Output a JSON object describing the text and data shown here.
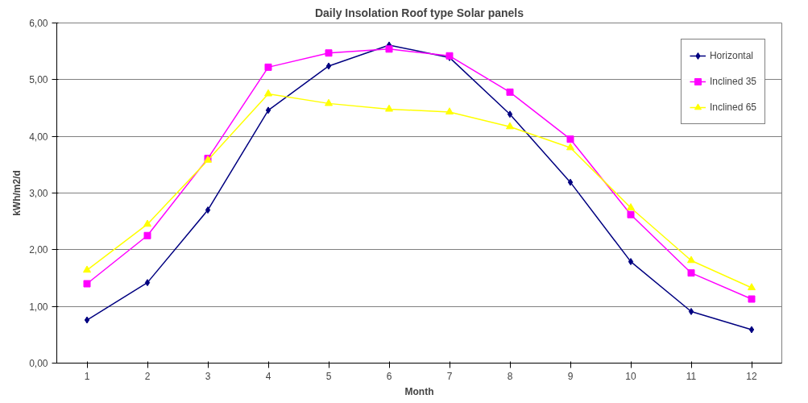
{
  "chart_data": {
    "type": "line",
    "title": "Daily Insolation Roof type Solar panels",
    "xlabel": "Month",
    "ylabel": "kWh/m2/d",
    "x": [
      1,
      2,
      3,
      4,
      5,
      6,
      7,
      8,
      9,
      10,
      11,
      12
    ],
    "xlim": [
      0.5,
      12.5
    ],
    "xticks": [
      1,
      2,
      3,
      4,
      5,
      6,
      7,
      8,
      9,
      10,
      11,
      12
    ],
    "ylim": [
      0,
      6
    ],
    "yticks": [
      {
        "value": 0,
        "label": "0,00"
      },
      {
        "value": 1,
        "label": "1,00"
      },
      {
        "value": 2,
        "label": "2,00"
      },
      {
        "value": 3,
        "label": "3,00"
      },
      {
        "value": 4,
        "label": "4,00"
      },
      {
        "value": 5,
        "label": "5,00"
      },
      {
        "value": 6,
        "label": "6,00"
      }
    ],
    "grid": "y",
    "legend": "top right",
    "line_style": "solid",
    "series": [
      {
        "name": "Horizontal",
        "color": "#000080",
        "marker": "diamond",
        "values": [
          0.76,
          1.42,
          2.7,
          4.46,
          5.24,
          5.61,
          5.39,
          4.39,
          3.19,
          1.79,
          0.91,
          0.59
        ]
      },
      {
        "name": "Inclined 35",
        "color": "#ff00ff",
        "marker": "square",
        "values": [
          1.4,
          2.25,
          3.61,
          5.22,
          5.47,
          5.54,
          5.42,
          4.78,
          3.95,
          2.62,
          1.59,
          1.13
        ]
      },
      {
        "name": "Inclined 65",
        "color": "#ffff00",
        "marker": "triangle",
        "values": [
          1.64,
          2.45,
          3.58,
          4.75,
          4.58,
          4.48,
          4.43,
          4.17,
          3.8,
          2.74,
          1.81,
          1.33
        ]
      }
    ]
  }
}
